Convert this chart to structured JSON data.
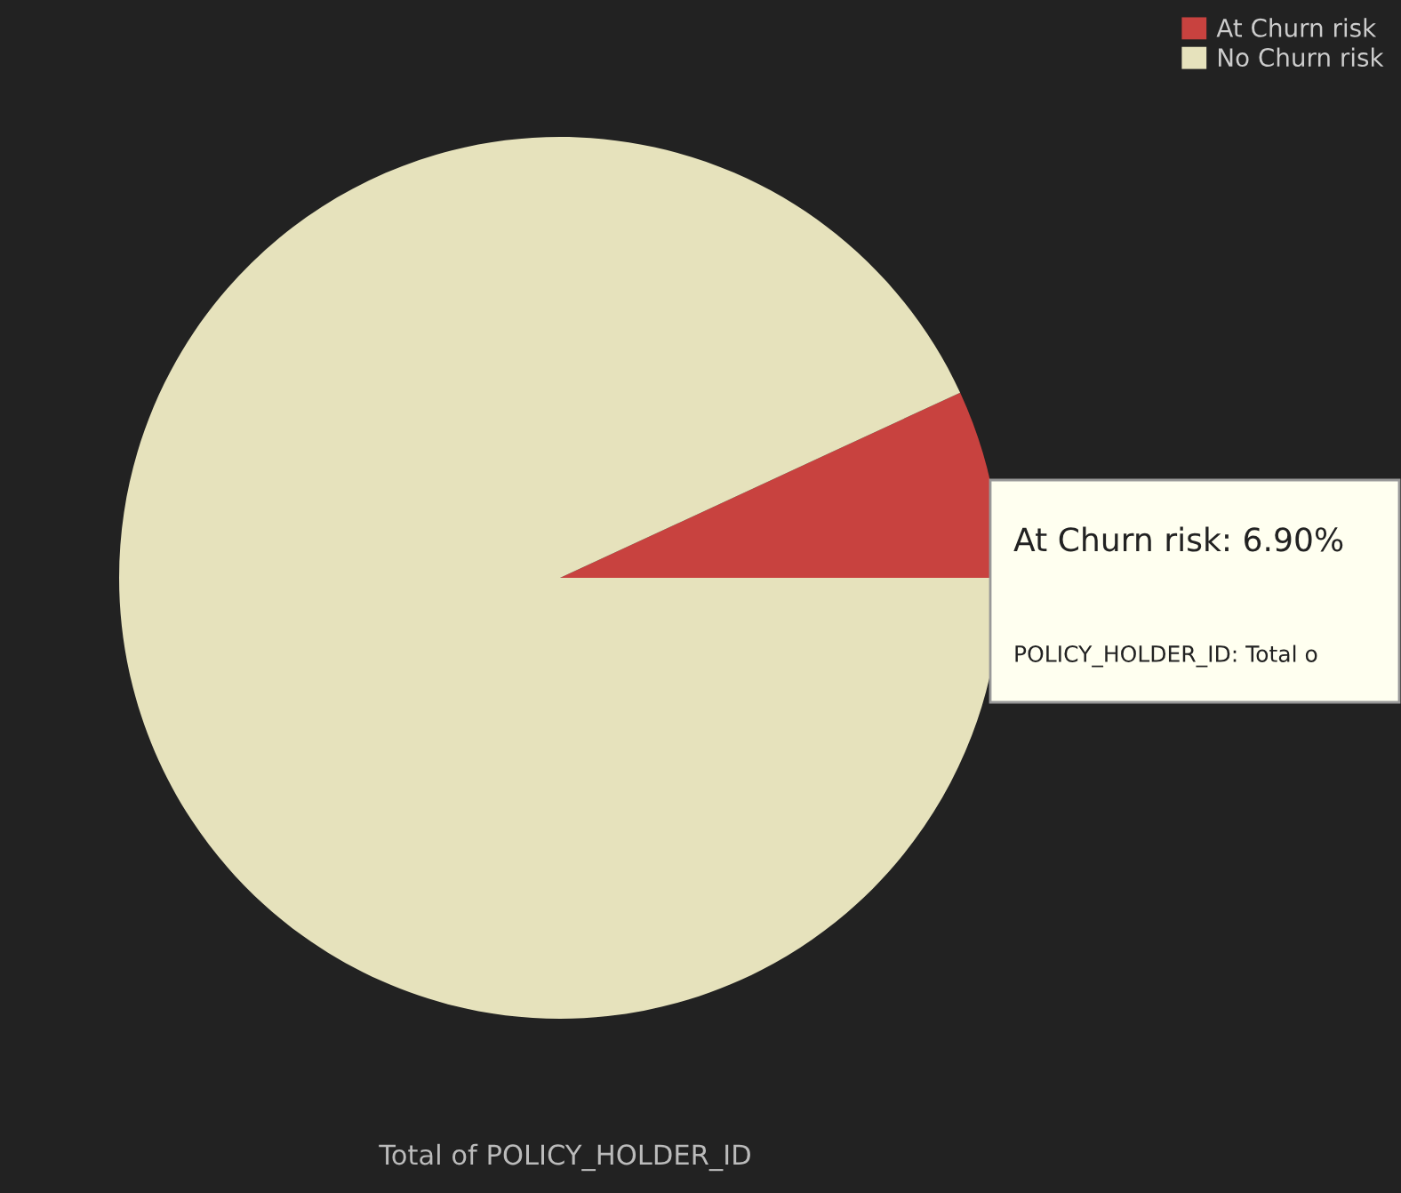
{
  "chart_data": {
    "type": "pie",
    "xlabel": "Total of POLICY_HOLDER_ID",
    "categories": [
      "At Churn risk",
      "No Churn risk"
    ],
    "values": [
      6.9,
      93.1
    ],
    "colors": [
      "#c8423f",
      "#e6e2bc"
    ],
    "legend": "top right",
    "annotations": [
      "At Churn risk: 6.90%",
      "POLICY_HOLDER_ID: Total o"
    ]
  }
}
